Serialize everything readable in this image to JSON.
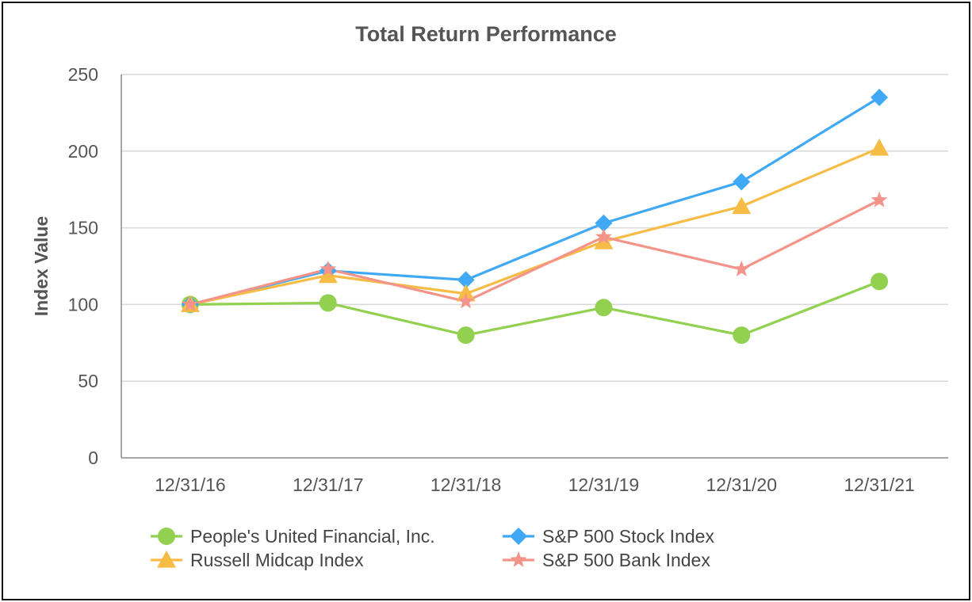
{
  "chart_data": {
    "type": "line",
    "title": "Total Return Performance",
    "xlabel": "",
    "ylabel": "Index Value",
    "ylim": [
      0,
      250
    ],
    "yticks": [
      0,
      50,
      100,
      150,
      200,
      250
    ],
    "grid": true,
    "legend_position": "bottom",
    "categories": [
      "12/31/16",
      "12/31/17",
      "12/31/18",
      "12/31/19",
      "12/31/20",
      "12/31/21"
    ],
    "series": [
      {
        "name": "People's United Financial, Inc.",
        "color": "#92d050",
        "marker": "circle",
        "values": [
          100,
          101,
          80,
          98,
          80,
          115
        ]
      },
      {
        "name": "S&P 500 Stock Index",
        "color": "#3fa9f5",
        "marker": "diamond",
        "values": [
          100,
          122,
          116,
          153,
          180,
          235
        ]
      },
      {
        "name": "Russell Midcap Index",
        "color": "#f7bc45",
        "marker": "triangle",
        "values": [
          100,
          119,
          107,
          141,
          164,
          202
        ]
      },
      {
        "name": "S&P 500 Bank Index",
        "color": "#f4938a",
        "marker": "star",
        "values": [
          100,
          123,
          102,
          144,
          123,
          168
        ]
      }
    ]
  }
}
